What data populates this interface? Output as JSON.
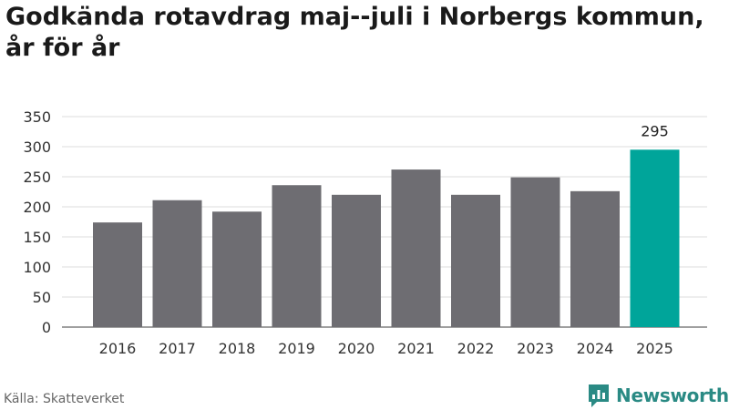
{
  "title": "Godkända rotavdrag maj--juli i Norbergs kommun, år för år",
  "source": "Källa: Skatteverket",
  "brand": {
    "name": "Newsworthy",
    "icon": "newsworthy-logo-icon",
    "color": "#2a8a84"
  },
  "chart_data": {
    "type": "bar",
    "categories": [
      "2016",
      "2017",
      "2018",
      "2019",
      "2020",
      "2021",
      "2022",
      "2023",
      "2024",
      "2025"
    ],
    "values": [
      174,
      211,
      192,
      236,
      220,
      262,
      220,
      249,
      226,
      295
    ],
    "ylim": [
      0,
      350
    ],
    "yticks": [
      0,
      50,
      100,
      150,
      200,
      250,
      300,
      350
    ],
    "grid": true,
    "bar_color": "#6e6d72",
    "highlight_color": "#00a59a",
    "highlight_index": 9,
    "data_labels": [
      {
        "index": 9,
        "text": "295"
      }
    ]
  }
}
